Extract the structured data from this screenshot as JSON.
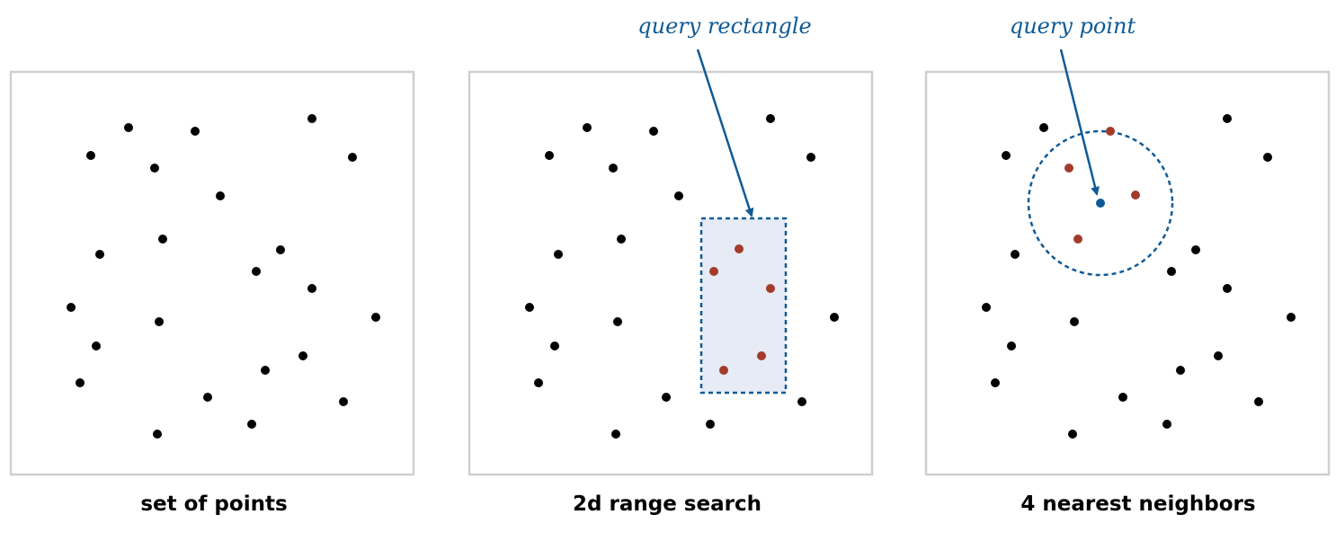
{
  "colors": {
    "point": "#000000",
    "highlight": "#a23b2a",
    "query": "#0f5a96",
    "rect_fill": "#e6ebf5",
    "border": "#cfcfcf"
  },
  "panels": [
    {
      "id": "set",
      "caption": "set of points"
    },
    {
      "id": "range",
      "caption": "2d range search"
    },
    {
      "id": "knn",
      "caption": "4 nearest neighbors"
    }
  ],
  "annotations": {
    "query_rectangle": "query rectangle",
    "query_point": "query point"
  }
}
